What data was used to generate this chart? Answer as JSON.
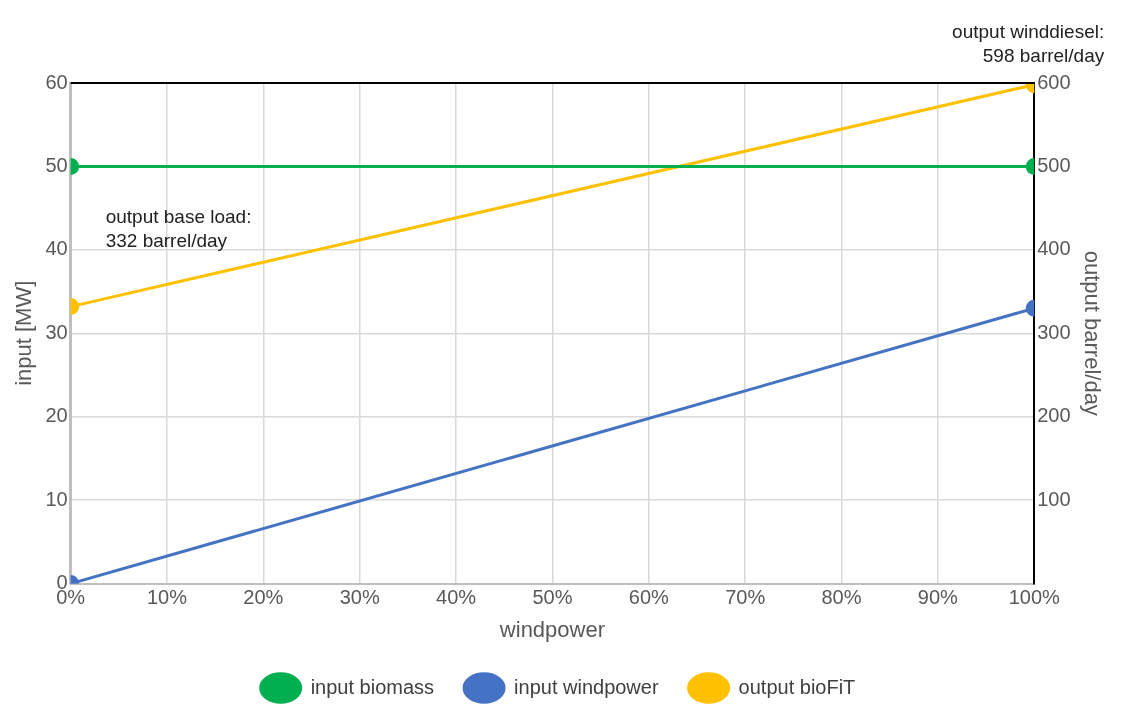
{
  "chart_data": {
    "type": "line",
    "xlabel": "windpower",
    "ylabel": "input [MW]",
    "y2label": "output barrel/day",
    "x": [
      0,
      100
    ],
    "xlim": [
      0,
      100
    ],
    "xticks": [
      {
        "value": 0,
        "label": "0%"
      },
      {
        "value": 10,
        "label": "10%"
      },
      {
        "value": 20,
        "label": "20%"
      },
      {
        "value": 30,
        "label": "30%"
      },
      {
        "value": 40,
        "label": "40%"
      },
      {
        "value": 50,
        "label": "50%"
      },
      {
        "value": 60,
        "label": "60%"
      },
      {
        "value": 70,
        "label": "70%"
      },
      {
        "value": 80,
        "label": "80%"
      },
      {
        "value": 90,
        "label": "90%"
      },
      {
        "value": 100,
        "label": "100%"
      }
    ],
    "ylim": [
      0,
      60
    ],
    "yticks": [
      0,
      10,
      20,
      30,
      40,
      50,
      60
    ],
    "y2lim": [
      0,
      600
    ],
    "y2ticks": [
      100,
      200,
      300,
      400,
      500,
      600
    ],
    "series": [
      {
        "name": "input biomass",
        "color": "#00b050",
        "values": [
          50,
          50
        ]
      },
      {
        "name": "input windpower",
        "color": "#4472c4",
        "values": [
          0,
          33
        ]
      },
      {
        "name": "output bioFiT",
        "color": "#ffc000",
        "values": [
          332,
          598
        ],
        "axis": "y2"
      }
    ],
    "annotations": [
      "output base load:\n332 barrel/day",
      "output winddiesel:\n598 barrel/day"
    ],
    "grid": true,
    "legend": "bottom",
    "marker": "circle",
    "line_style": "solid"
  }
}
